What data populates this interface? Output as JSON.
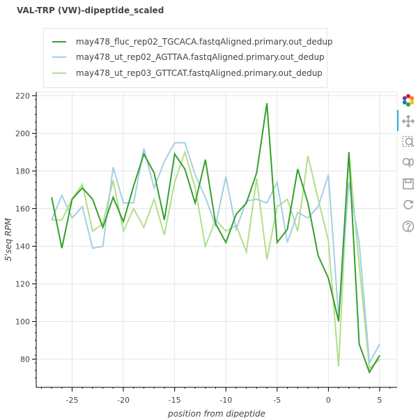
{
  "title": "VAL-TRP (VW)-dipeptide_scaled",
  "toolbar": {
    "tools": [
      {
        "name": "bokeh-logo-icon"
      },
      {
        "name": "pan-icon"
      },
      {
        "name": "box-zoom-icon"
      },
      {
        "name": "wheel-zoom-icon"
      },
      {
        "name": "save-icon"
      },
      {
        "name": "reset-icon"
      },
      {
        "name": "help-icon"
      }
    ]
  },
  "chart_data": {
    "type": "line",
    "title": "VAL-TRP (VW)-dipeptide_scaled",
    "xlabel": "position from dipeptide",
    "ylabel": "5'seq RPM",
    "xlim": [
      -28.5,
      6.7
    ],
    "ylim": [
      65,
      222
    ],
    "xticks": [
      -25,
      -20,
      -15,
      -10,
      -5,
      0,
      5
    ],
    "yticks": [
      80,
      100,
      120,
      140,
      160,
      180,
      200,
      220
    ],
    "grid": true,
    "legend_position": "top-left",
    "x": [
      -27,
      -26,
      -25,
      -24,
      -23,
      -22,
      -21,
      -20,
      -19,
      -18,
      -17,
      -16,
      -15,
      -14,
      -13,
      -12,
      -11,
      -10,
      -9,
      -8,
      -7,
      -6,
      -5,
      -4,
      -3,
      -2,
      -1,
      0,
      1,
      2,
      3,
      4,
      5
    ],
    "series": [
      {
        "name": "may478_fluc_rep02_TGCACA.fastqAligned.primary.out_dedup",
        "color": "#33a02c",
        "values": [
          166,
          139,
          165,
          171,
          165,
          150,
          166,
          153,
          172,
          189,
          179,
          154,
          189,
          181,
          163,
          186,
          152,
          142,
          157,
          163,
          179,
          216,
          142,
          149,
          181,
          163,
          135,
          123,
          100,
          190,
          88,
          73,
          82
        ]
      },
      {
        "name": "may478_ut_rep02_AGTTAA.fastqAligned.primary.out_dedup",
        "color": "#a6cee3",
        "values": [
          154,
          167,
          155,
          161,
          139,
          140,
          182,
          163,
          163,
          192,
          171,
          185,
          195,
          195,
          178,
          166,
          151,
          177,
          149,
          164,
          165,
          163,
          174,
          142,
          158,
          155,
          161,
          178,
          102,
          174,
          142,
          78,
          88
        ]
      },
      {
        "name": "may478_ut_rep03_GTTCAT.fastqAligned.primary.out_dedup",
        "color": "#b2df8a",
        "values": [
          154,
          154,
          165,
          173,
          148,
          152,
          175,
          148,
          160,
          150,
          165,
          146,
          174,
          190,
          171,
          140,
          154,
          148,
          151,
          137,
          176,
          133,
          161,
          165,
          148,
          188,
          165,
          143,
          76,
          190,
          130,
          75,
          80
        ]
      }
    ]
  }
}
